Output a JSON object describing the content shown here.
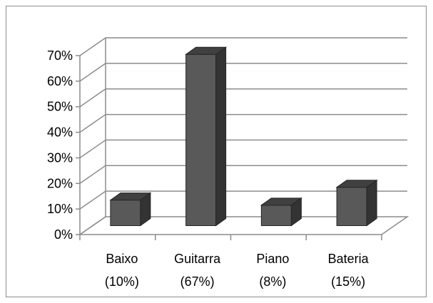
{
  "chart_data": {
    "type": "bar",
    "title": "",
    "xlabel": "",
    "ylabel": "",
    "categories": [
      "Baixo",
      "Guitarra",
      "Piano",
      "Bateria"
    ],
    "category_sublabels": [
      "(10%)",
      "(67%)",
      "(8%)",
      "(15%)"
    ],
    "values": [
      10,
      67,
      8,
      15
    ],
    "ylim": [
      0,
      70
    ],
    "y_ticks": [
      "0%",
      "10%",
      "20%",
      "30%",
      "40%",
      "50%",
      "60%",
      "70%"
    ],
    "y_tick_values": [
      0,
      10,
      20,
      30,
      40,
      50,
      60,
      70
    ],
    "grid": true,
    "legend": "none",
    "bar_color": "#595959",
    "bar_side_color": "#333333",
    "bar_top_color": "#404040",
    "gridline_color": "#8c8c8c"
  }
}
